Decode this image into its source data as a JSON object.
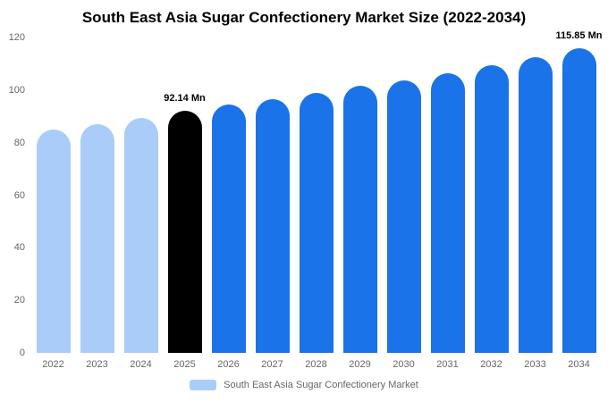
{
  "title": "South East Asia Sugar Confectionery Market Size (2022-2034)",
  "legend": {
    "label": "South East Asia Sugar Confectionery Market",
    "swatch_color": "#a9cdf8"
  },
  "colors": {
    "light_blue": "#a9cdf8",
    "highlight_black": "#000000",
    "primary_blue": "#1a73e8",
    "axis_text": "#666666",
    "background": "#ffffff"
  },
  "chart_data": {
    "type": "bar",
    "title": "South East Asia Sugar Confectionery Market Size (2022-2034)",
    "categories": [
      "2022",
      "2023",
      "2024",
      "2025",
      "2026",
      "2027",
      "2028",
      "2029",
      "2030",
      "2031",
      "2032",
      "2033",
      "2034"
    ],
    "values": [
      85,
      87,
      89.5,
      92.14,
      94.5,
      96.5,
      99,
      101.5,
      103.8,
      106.3,
      109.5,
      112.5,
      115.85
    ],
    "bar_colors": [
      "#a9cdf8",
      "#a9cdf8",
      "#a9cdf8",
      "#000000",
      "#1a73e8",
      "#1a73e8",
      "#1a73e8",
      "#1a73e8",
      "#1a73e8",
      "#1a73e8",
      "#1a73e8",
      "#1a73e8",
      "#1a73e8"
    ],
    "annotations": [
      {
        "index": 3,
        "text": "92.14 Mn"
      },
      {
        "index": 12,
        "text": "115.85 Mn"
      }
    ],
    "xlabel": "",
    "ylabel": "",
    "ylim": [
      0,
      120
    ],
    "yticks": [
      0,
      20,
      40,
      60,
      80,
      100,
      120
    ],
    "grid": false,
    "legend_position": "bottom"
  }
}
